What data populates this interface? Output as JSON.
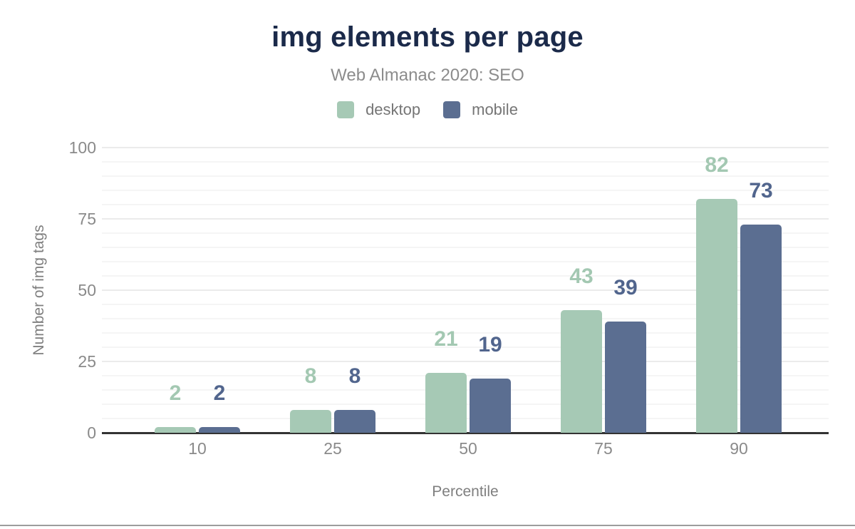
{
  "chart_data": {
    "type": "bar",
    "title": "img elements per page",
    "subtitle": "Web Almanac 2020: SEO",
    "xlabel": "Percentile",
    "ylabel": "Number of img tags",
    "categories": [
      "10",
      "25",
      "50",
      "75",
      "90"
    ],
    "series": [
      {
        "name": "desktop",
        "color": "#a6c9b5",
        "label_color": "#a3c8b2",
        "values": [
          2,
          8,
          21,
          43,
          82
        ]
      },
      {
        "name": "mobile",
        "color": "#5b6e91",
        "label_color": "#51658d",
        "values": [
          2,
          8,
          19,
          39,
          73
        ]
      }
    ],
    "ylim": [
      0,
      100
    ],
    "yticks": [
      0,
      25,
      50,
      75,
      100
    ],
    "grid": {
      "minor_step": 5,
      "major_step": 25,
      "on": true
    },
    "legend_position": "top"
  }
}
